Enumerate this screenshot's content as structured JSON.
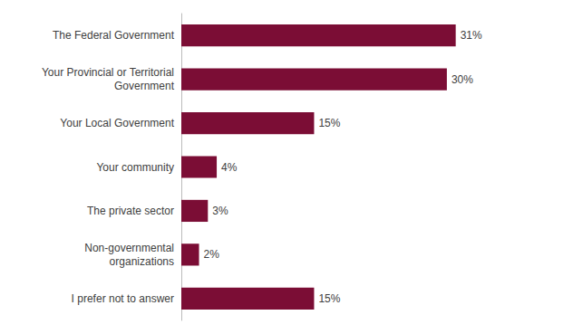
{
  "chart_data": {
    "type": "bar",
    "orientation": "horizontal",
    "categories": [
      "I prefer not to answer",
      "Non-governmental\norganizations",
      "The private sector",
      "Your community",
      "Your Local Government",
      "Your Provincial or Territorial\nGovernment",
      "The Federal Government"
    ],
    "values": [
      15,
      2,
      3,
      4,
      15,
      30,
      31
    ],
    "value_labels": [
      "15%",
      "2%",
      "3%",
      "4%",
      "15%",
      "30%",
      "31%"
    ],
    "data_labels": true,
    "color": "#7b0d35",
    "xlim": [
      0,
      38
    ],
    "tick_labels": "y",
    "grid": false
  }
}
